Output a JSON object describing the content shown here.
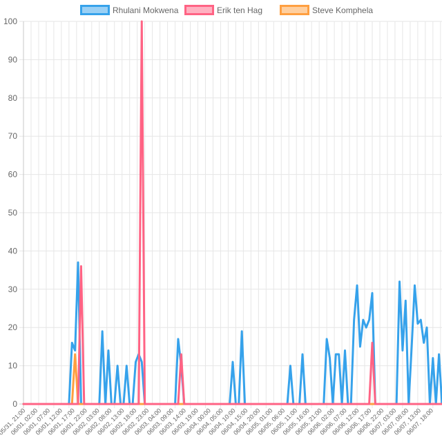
{
  "chart_data": {
    "type": "line",
    "title": "",
    "xlabel": "",
    "ylabel": "",
    "ylim": [
      0,
      100
    ],
    "y_ticks": [
      0,
      10,
      20,
      30,
      40,
      50,
      60,
      70,
      80,
      90,
      100
    ],
    "grid": true,
    "legend_position": "top",
    "x_labels": [
      "05/31, 21:00",
      "06/01, 02:00",
      "06/01, 07:00",
      "06/01, 12:00",
      "06/01, 17:00",
      "06/01, 22:00",
      "06/02, 03:00",
      "06/02, 08:00",
      "06/02, 13:00",
      "06/02, 18:00",
      "06/02, 23:00",
      "06/03, 04:00",
      "06/03, 09:00",
      "06/03, 14:00",
      "06/03, 19:00",
      "06/04, 00:00",
      "06/04, 05:00",
      "06/04, 10:00",
      "06/04, 15:00",
      "06/04, 20:00",
      "06/05, 01:00",
      "06/05, 06:00",
      "06/05, 11:00",
      "06/05, 16:00",
      "06/05, 21:00",
      "06/06, 02:00",
      "06/06, 07:00",
      "06/06, 12:00",
      "06/06, 17:00",
      "06/06, 22:00",
      "06/07, 03:00",
      "06/07, 08:00",
      "06/07, 13:00",
      "06/07, 18:00"
    ],
    "series": [
      {
        "name": "Rhulani Mokwena",
        "color": "#36a2eb",
        "fill": "#9ad0f5",
        "points": [
          [
            0,
            0
          ],
          [
            15,
            0
          ],
          [
            16,
            16
          ],
          [
            17,
            14
          ],
          [
            18,
            37
          ],
          [
            19,
            0
          ],
          [
            25,
            0
          ],
          [
            26,
            19
          ],
          [
            27,
            0
          ],
          [
            28,
            14
          ],
          [
            29,
            0
          ],
          [
            30,
            0
          ],
          [
            31,
            10
          ],
          [
            32,
            0
          ],
          [
            33,
            0
          ],
          [
            34,
            10
          ],
          [
            35,
            0
          ],
          [
            36,
            0
          ],
          [
            37,
            11
          ],
          [
            38,
            13
          ],
          [
            39,
            11
          ],
          [
            40,
            0
          ],
          [
            50,
            0
          ],
          [
            51,
            17
          ],
          [
            52,
            10
          ],
          [
            53,
            0
          ],
          [
            68,
            0
          ],
          [
            69,
            11
          ],
          [
            70,
            0
          ],
          [
            71,
            0
          ],
          [
            72,
            19
          ],
          [
            73,
            0
          ],
          [
            87,
            0
          ],
          [
            88,
            10
          ],
          [
            89,
            0
          ],
          [
            91,
            0
          ],
          [
            92,
            13
          ],
          [
            93,
            0
          ],
          [
            99,
            0
          ],
          [
            100,
            17
          ],
          [
            101,
            12
          ],
          [
            102,
            0
          ],
          [
            103,
            13
          ],
          [
            104,
            13
          ],
          [
            105,
            0
          ],
          [
            106,
            14
          ],
          [
            107,
            0
          ],
          [
            108,
            0
          ],
          [
            109,
            22
          ],
          [
            110,
            31
          ],
          [
            111,
            15
          ],
          [
            112,
            22
          ],
          [
            113,
            20
          ],
          [
            114,
            22
          ],
          [
            115,
            29
          ],
          [
            116,
            0
          ],
          [
            123,
            0
          ],
          [
            124,
            32
          ],
          [
            125,
            14
          ],
          [
            126,
            27
          ],
          [
            127,
            0
          ],
          [
            128,
            15
          ],
          [
            129,
            31
          ],
          [
            130,
            21
          ],
          [
            131,
            22
          ],
          [
            132,
            16
          ],
          [
            133,
            20
          ],
          [
            134,
            0
          ],
          [
            135,
            12
          ],
          [
            136,
            0
          ],
          [
            137,
            13
          ],
          [
            138,
            0
          ]
        ]
      },
      {
        "name": "Erik ten Hag",
        "color": "#ff6384",
        "fill": "#ffb1c1",
        "points": [
          [
            0,
            0
          ],
          [
            18,
            0
          ],
          [
            19,
            36
          ],
          [
            20,
            0
          ],
          [
            38,
            0
          ],
          [
            39,
            100
          ],
          [
            40,
            0
          ],
          [
            51,
            0
          ],
          [
            52,
            13
          ],
          [
            53,
            0
          ],
          [
            114,
            0
          ],
          [
            115,
            16
          ],
          [
            116,
            0
          ],
          [
            138,
            0
          ]
        ]
      },
      {
        "name": "Steve Komphela",
        "color": "#ff9f40",
        "fill": "#ffcf9f",
        "points": [
          [
            0,
            0
          ],
          [
            16,
            0
          ],
          [
            17,
            13
          ],
          [
            18,
            0
          ],
          [
            138,
            0
          ]
        ]
      }
    ]
  }
}
